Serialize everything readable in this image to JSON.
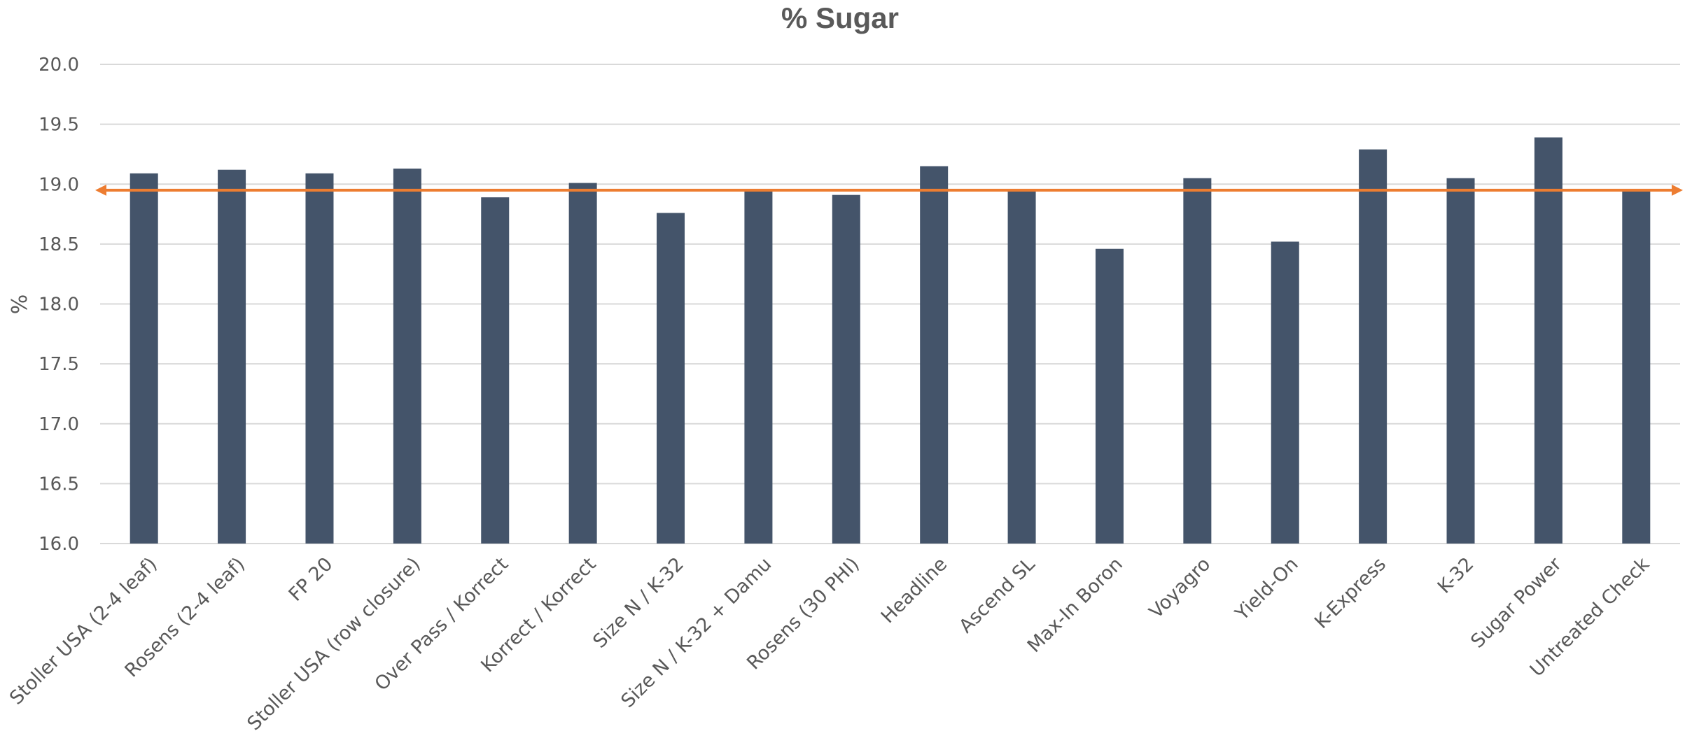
{
  "chart_data": {
    "type": "bar",
    "title": "% Sugar",
    "xlabel": "",
    "ylabel": "%",
    "ylim": [
      16.0,
      20.0
    ],
    "yticks": [
      "16.0",
      "16.5",
      "17.0",
      "17.5",
      "18.0",
      "18.5",
      "19.0",
      "19.5",
      "20.0"
    ],
    "grid": true,
    "categories": [
      "Stoller USA (2-4 leaf)",
      "Rosens (2-4 leaf)",
      "FP 20",
      "Stoller USA (row closure)",
      "Over Pass / Korrect",
      "Korrect / Korrect",
      "Size N / K-32",
      "Size N / K-32 + Damu",
      "Rosens (30 PHI)",
      "Headline",
      "Ascend SL",
      "Max-In Boron",
      "Voyagro",
      "Yield-On",
      "K-Express",
      "K-32",
      "Sugar Power",
      "Untreated Check"
    ],
    "values": [
      19.09,
      19.12,
      19.09,
      19.13,
      18.89,
      19.01,
      18.76,
      18.94,
      18.91,
      19.15,
      18.95,
      18.46,
      19.05,
      18.52,
      19.29,
      19.05,
      19.39,
      18.94
    ],
    "reference_line": {
      "value": 18.95,
      "color": "#ED7D31"
    },
    "colors": {
      "bar": "#44546A",
      "grid": "#D9D9D9",
      "text": "#595959"
    }
  }
}
